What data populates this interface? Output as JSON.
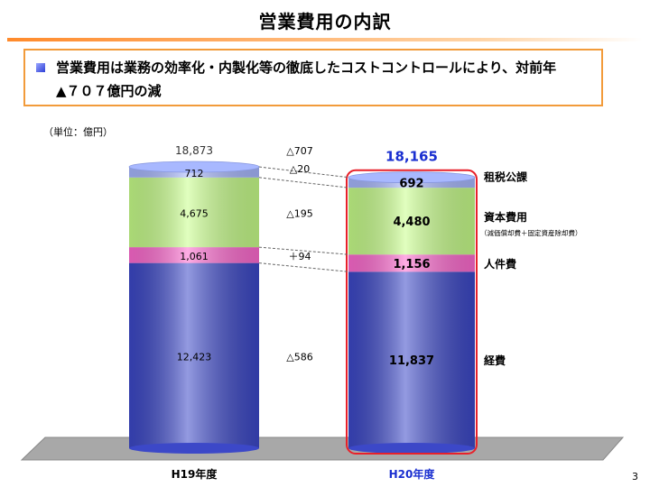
{
  "title": "営業費用の内訳",
  "summary": {
    "line1": "営業費用は業務の効率化・内製化等の徹底したコストコントロールにより、対前年",
    "line2": "▲７０７億円の減"
  },
  "page_number": "3",
  "chart_data": {
    "type": "bar",
    "stacked": true,
    "unit_label": "（単位：億円）",
    "categories": [
      "H19年度",
      "H20年度"
    ],
    "series": [
      {
        "name": "経費",
        "values": [
          12423,
          11837
        ],
        "labels": [
          "12,423",
          "11,837"
        ],
        "color": "#3c48c8"
      },
      {
        "name": "人件費",
        "values": [
          1061,
          1156
        ],
        "labels": [
          "1,061",
          "1,156"
        ],
        "color": "#ff6ad0"
      },
      {
        "name": "資本費用",
        "sublabel": "（減価償却費＋固定資産除却費）",
        "values": [
          4675,
          4480
        ],
        "labels": [
          "4,675",
          "4,480"
        ],
        "color": "#c8ff8a"
      },
      {
        "name": "租税公課",
        "values": [
          712,
          692
        ],
        "labels": [
          "712",
          "692"
        ],
        "color": "#a8b8ff"
      }
    ],
    "totals": [
      "18,873",
      "18,165"
    ],
    "changes": [
      "△707",
      "△20",
      "△195",
      "＋94",
      "△586"
    ],
    "highlight_color": "#e8202a",
    "total_highlight_color": "#1a2fd0"
  }
}
